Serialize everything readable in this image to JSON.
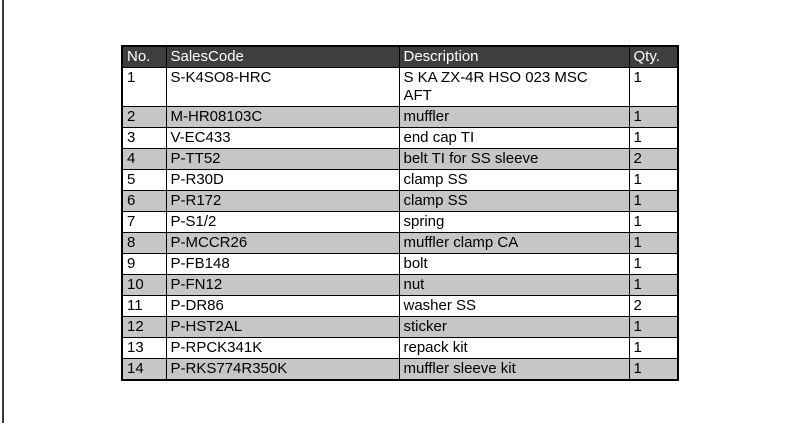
{
  "table": {
    "columns": [
      {
        "key": "no",
        "label": "No."
      },
      {
        "key": "sales_code",
        "label": "SalesCode"
      },
      {
        "key": "description",
        "label": "Description"
      },
      {
        "key": "qty",
        "label": "Qty."
      }
    ],
    "rows": [
      {
        "no": "1",
        "sales_code": "S-K4SO8-HRC",
        "description": "S KA ZX-4R HSO 023 MSC AFT",
        "qty": "1"
      },
      {
        "no": "2",
        "sales_code": "M-HR08103C",
        "description": "muffler",
        "qty": "1"
      },
      {
        "no": "3",
        "sales_code": "V-EC433",
        "description": "end cap TI",
        "qty": "1"
      },
      {
        "no": "4",
        "sales_code": "P-TT52",
        "description": "belt TI for SS sleeve",
        "qty": "2"
      },
      {
        "no": "5",
        "sales_code": "P-R30D",
        "description": "clamp SS",
        "qty": "1"
      },
      {
        "no": "6",
        "sales_code": "P-R172",
        "description": "clamp SS",
        "qty": "1"
      },
      {
        "no": "7",
        "sales_code": "P-S1/2",
        "description": "spring",
        "qty": "1"
      },
      {
        "no": "8",
        "sales_code": "P-MCCR26",
        "description": "muffler clamp CA",
        "qty": "1"
      },
      {
        "no": "9",
        "sales_code": "P-FB148",
        "description": "bolt",
        "qty": "1"
      },
      {
        "no": "10",
        "sales_code": "P-FN12",
        "description": "nut",
        "qty": "1"
      },
      {
        "no": "11",
        "sales_code": "P-DR86",
        "description": "washer SS",
        "qty": "2"
      },
      {
        "no": "12",
        "sales_code": "P-HST2AL",
        "description": "sticker",
        "qty": "1"
      },
      {
        "no": "13",
        "sales_code": "P-RPCK341K",
        "description": "repack kit",
        "qty": "1"
      },
      {
        "no": "14",
        "sales_code": "P-RKS774R350K",
        "description": "muffler sleeve kit",
        "qty": "1"
      }
    ]
  },
  "colors": {
    "header_bg": "#3e3e40",
    "header_text": "#ffffff",
    "row_bg": "#ffffff",
    "row_alt_bg": "#c6c6c6",
    "border": "#000000",
    "frame_line": "#3a3a3c",
    "page_bg": "#ffffff"
  }
}
